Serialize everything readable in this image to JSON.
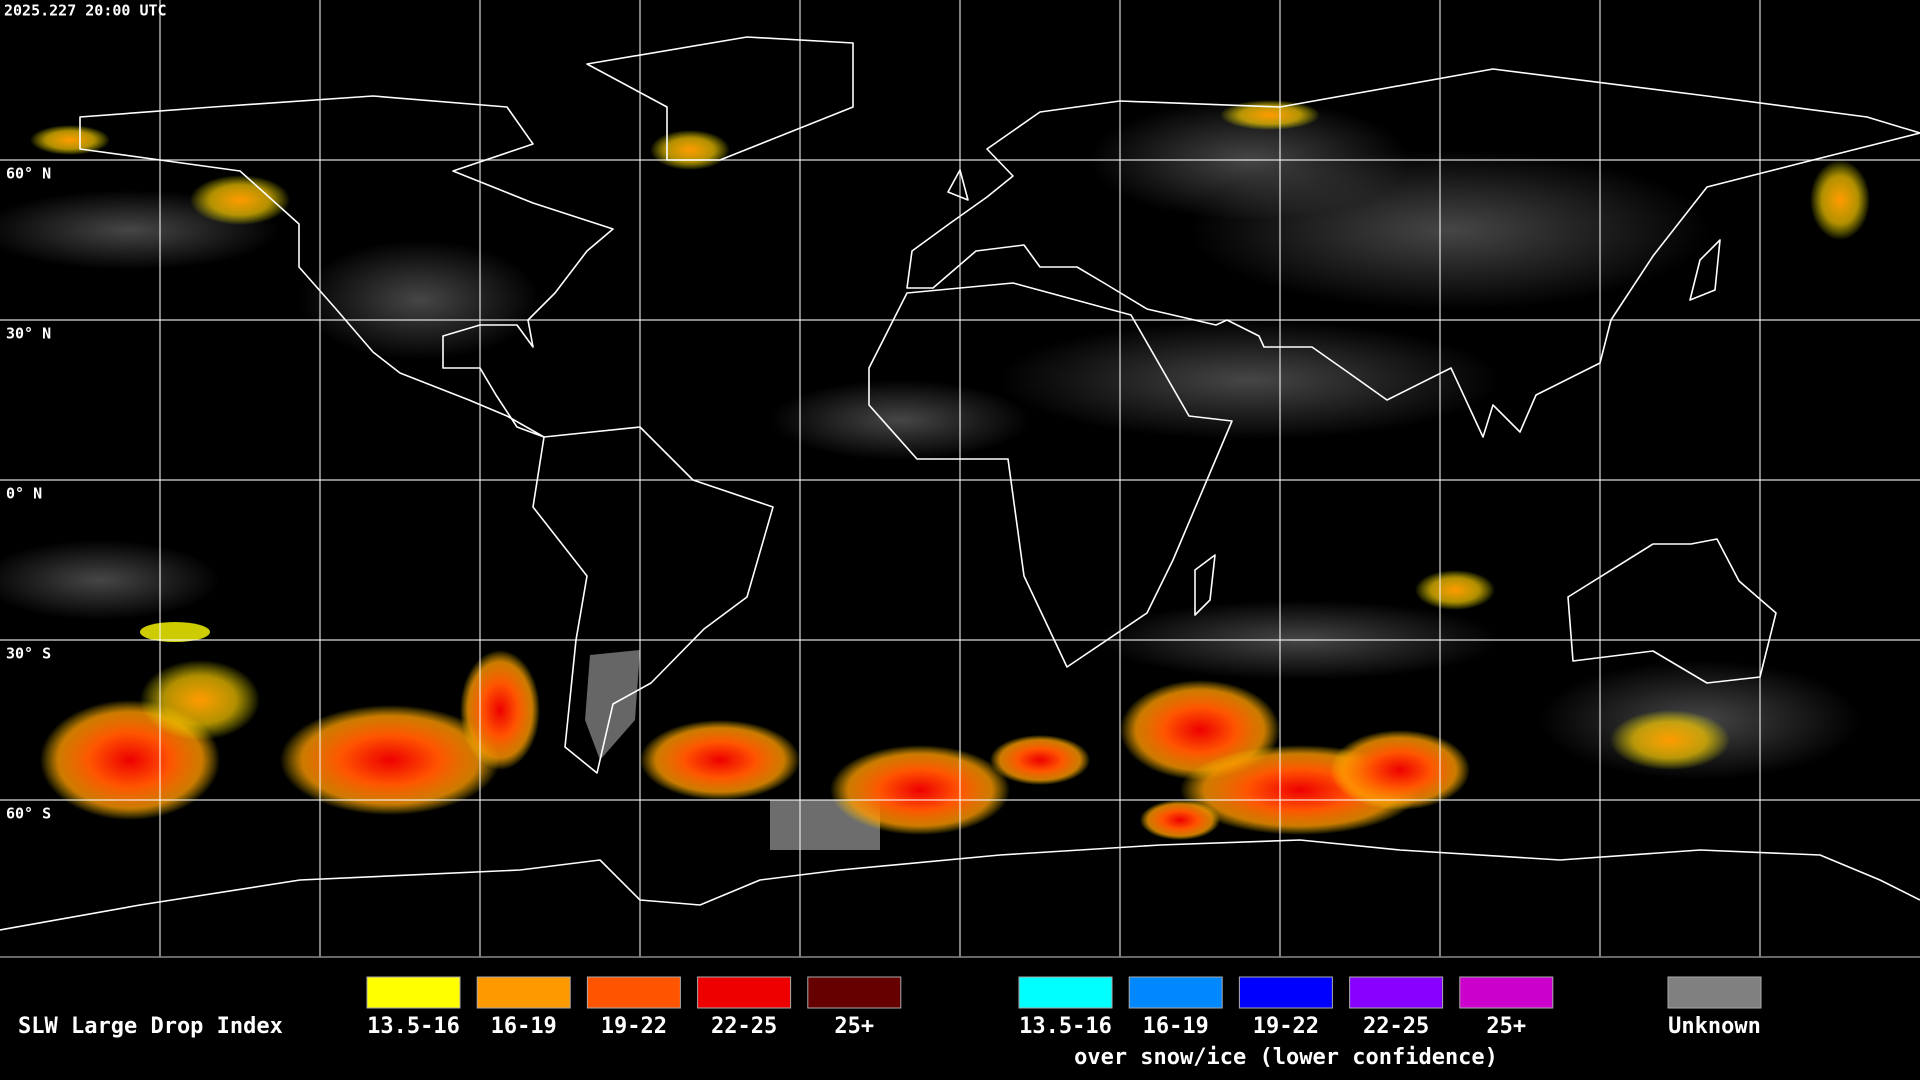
{
  "header": {
    "timestamp": "2025.227 20:00 UTC"
  },
  "map": {
    "latitude_labels": [
      "60° N",
      "30° N",
      "0° N",
      "30° S",
      "60° S"
    ]
  },
  "legend": {
    "title": "SLW Large Drop Index",
    "liquid": [
      {
        "label": "13.5-16",
        "color": "#ffff00"
      },
      {
        "label": "16-19",
        "color": "#ff9900"
      },
      {
        "label": "19-22",
        "color": "#ff5500"
      },
      {
        "label": "22-25",
        "color": "#ee0000"
      },
      {
        "label": "25+",
        "color": "#660000"
      }
    ],
    "snow_ice": [
      {
        "label": "13.5-16",
        "color": "#00ffff"
      },
      {
        "label": "16-19",
        "color": "#0088ff"
      },
      {
        "label": "19-22",
        "color": "#0000ff"
      },
      {
        "label": "22-25",
        "color": "#8800ff"
      },
      {
        "label": "25+",
        "color": "#cc00cc"
      }
    ],
    "snow_ice_caption": "over snow/ice (lower confidence)",
    "unknown": {
      "label": "Unknown",
      "color": "#808080"
    }
  }
}
